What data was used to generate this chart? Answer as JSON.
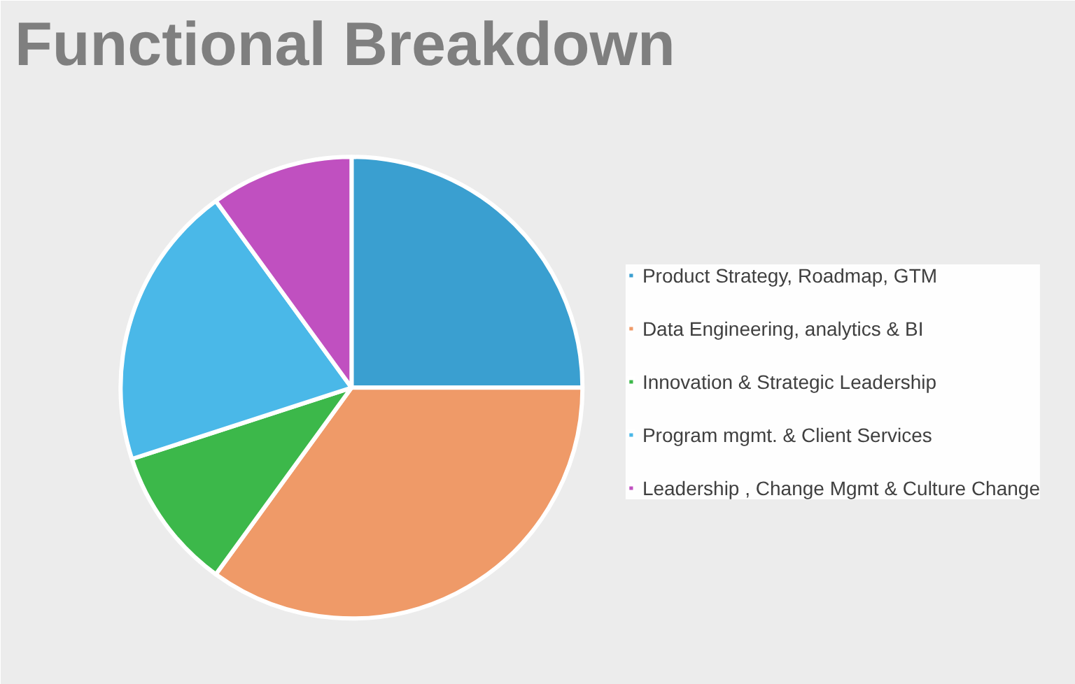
{
  "chart_data": {
    "type": "pie",
    "title": "Functional Breakdown",
    "categories": [
      "Product Strategy, Roadmap, GTM",
      "Data Engineering, analytics & BI",
      "Innovation & Strategic Leadership",
      "Program mgmt. & Client Services",
      "Leadership , Change Mgmt & Culture Change"
    ],
    "values": [
      25,
      35,
      10,
      20,
      10
    ],
    "colors": [
      "#3a9fd0",
      "#ef9a68",
      "#3cb84a",
      "#4ab8e8",
      "#c050c0"
    ],
    "legend": "right"
  }
}
